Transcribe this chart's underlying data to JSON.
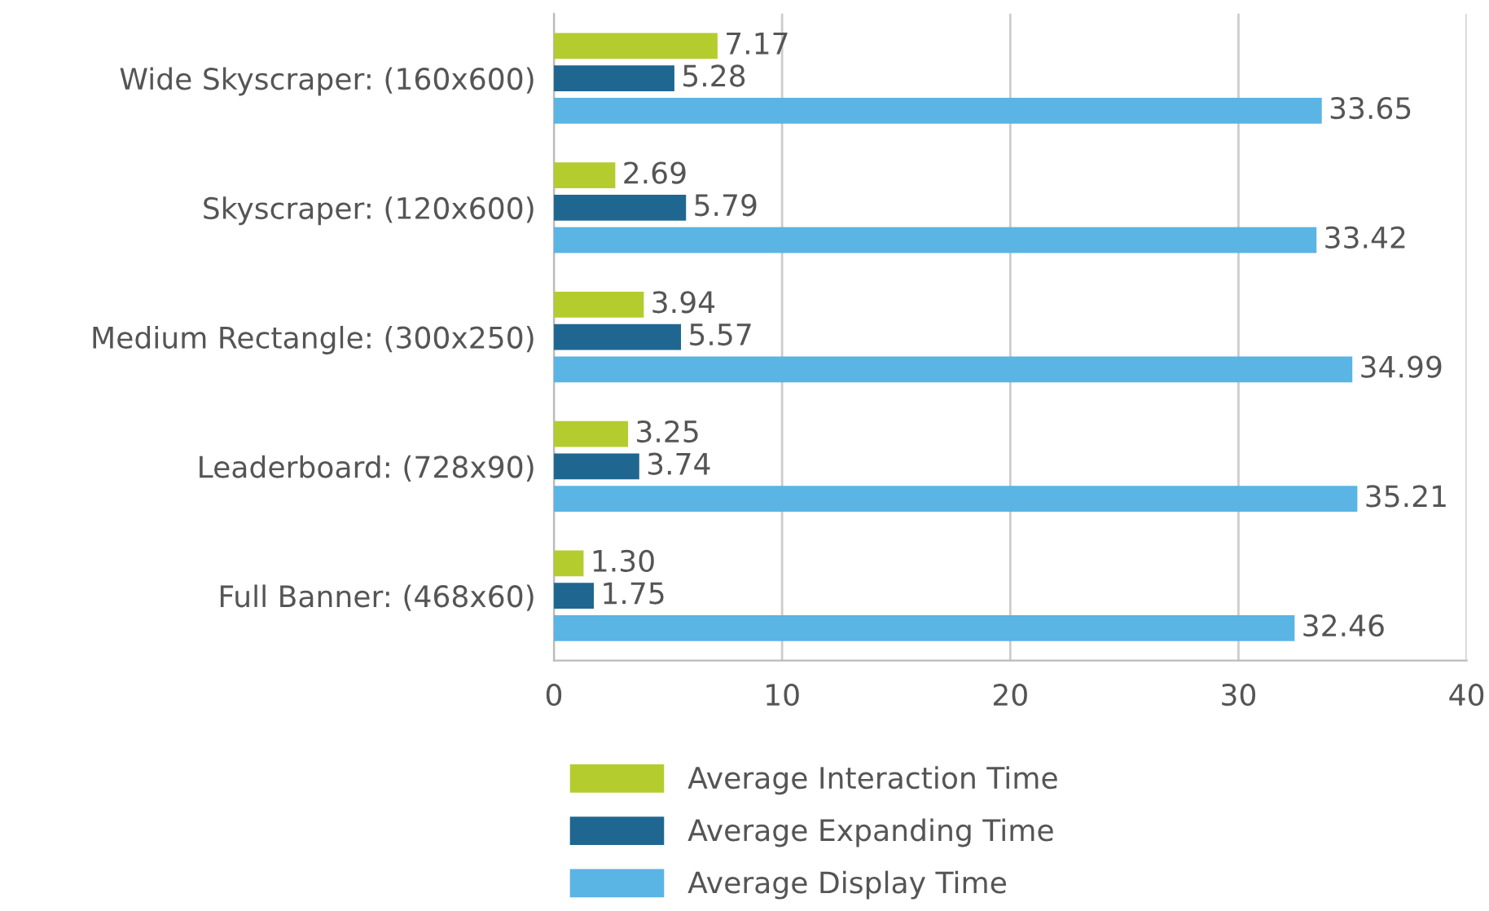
{
  "chart_data": {
    "type": "bar",
    "orientation": "horizontal",
    "categories": [
      "Wide Skyscraper: (160x600)",
      "Skyscraper: (120x600)",
      "Medium Rectangle: (300x250)",
      "Leaderboard: (728x90)",
      "Full Banner: (468x60)"
    ],
    "series": [
      {
        "name": "Average Interaction Time",
        "color": "#b5cc2f",
        "values": [
          7.17,
          2.69,
          3.94,
          3.25,
          1.3
        ],
        "value_labels": [
          "7.17",
          "2.69",
          "3.94",
          "3.25",
          "1.30"
        ]
      },
      {
        "name": "Average Expanding Time",
        "color": "#1f6790",
        "values": [
          5.28,
          5.79,
          5.57,
          3.74,
          1.75
        ],
        "value_labels": [
          "5.28",
          "5.79",
          "5.57",
          "3.74",
          "1.75"
        ]
      },
      {
        "name": "Average Display Time",
        "color": "#5ab4e4",
        "values": [
          33.65,
          33.42,
          34.99,
          35.21,
          32.46
        ],
        "value_labels": [
          "33.65",
          "33.42",
          "34.99",
          "35.21",
          "32.46"
        ]
      }
    ],
    "xlim": [
      0,
      40
    ],
    "xticks": [
      0,
      10,
      20,
      30,
      40
    ],
    "grid": "x",
    "legend": "bottom"
  }
}
